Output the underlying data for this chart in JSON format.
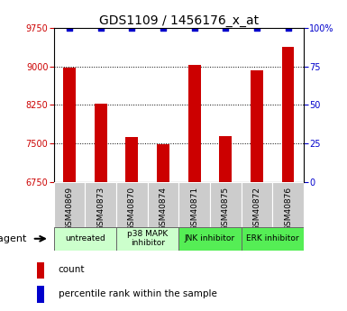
{
  "title": "GDS1109 / 1456176_x_at",
  "samples": [
    "GSM40869",
    "GSM40873",
    "GSM40870",
    "GSM40874",
    "GSM40871",
    "GSM40875",
    "GSM40872",
    "GSM40876"
  ],
  "bar_values": [
    8970,
    8280,
    7620,
    7480,
    9030,
    7650,
    8920,
    9390
  ],
  "bar_color": "#cc0000",
  "percentile_color": "#0000cc",
  "ymin": 6750,
  "ymax": 9750,
  "yticks": [
    6750,
    7500,
    8250,
    9000,
    9750
  ],
  "y2ticks": [
    0,
    25,
    50,
    75,
    100
  ],
  "y2labels": [
    "0",
    "25",
    "50",
    "75",
    "100%"
  ],
  "grid_color": "#000000",
  "agent_groups": [
    {
      "label": "untreated",
      "start": 0,
      "end": 2,
      "color": "#ccffcc"
    },
    {
      "label": "p38 MAPK\ninhibitor",
      "start": 2,
      "end": 4,
      "color": "#ccffcc"
    },
    {
      "label": "JNK inhibitor",
      "start": 4,
      "end": 6,
      "color": "#55ee55"
    },
    {
      "label": "ERK inhibitor",
      "start": 6,
      "end": 8,
      "color": "#55ee55"
    }
  ],
  "legend_count_color": "#cc0000",
  "legend_percentile_color": "#0000cc",
  "bg_color": "#ffffff",
  "ylabel_left_color": "#cc0000",
  "ylabel_right_color": "#0000cc",
  "sample_bg_color": "#cccccc",
  "title_fontsize": 10
}
